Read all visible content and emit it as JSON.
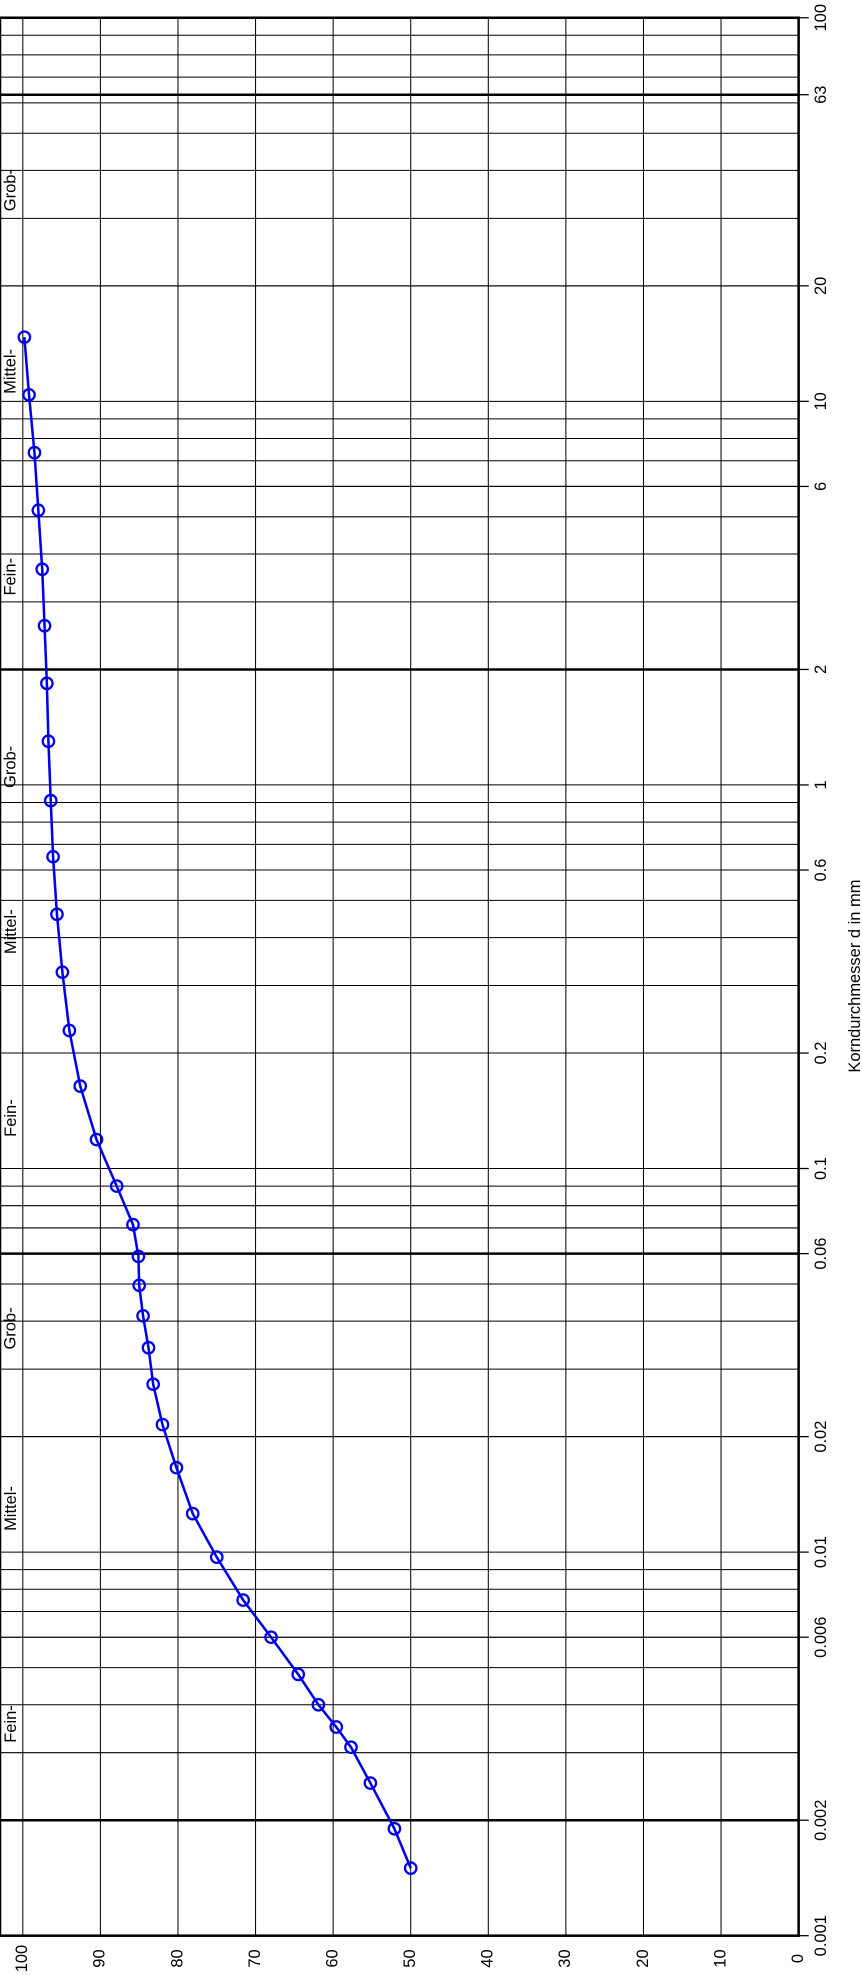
{
  "chart_data": {
    "type": "line",
    "x_label": "Korndurchmesser d in mm",
    "x_log": true,
    "xlim": [
      0.001,
      100
    ],
    "xticks": [
      0.001,
      0.002,
      0.006,
      0.01,
      0.02,
      0.06,
      0.1,
      0.2,
      0.6,
      1,
      2,
      6,
      10,
      20,
      63,
      100
    ],
    "ylim": [
      0,
      100
    ],
    "yticks": [
      0,
      10,
      20,
      30,
      40,
      50,
      60,
      70,
      80,
      90,
      100
    ],
    "grid": true,
    "annotations": [
      "Fein-",
      "Mittel-",
      "Grob-",
      "Fein-",
      "Mittel-",
      "Grob-",
      "Fein-",
      "Mittel-",
      "Grob-"
    ],
    "x": [
      0.0015,
      0.0019,
      0.0025,
      0.0031,
      0.0035,
      0.004,
      0.0048,
      0.006,
      0.0075,
      0.0097,
      0.0126,
      0.0166,
      0.0215,
      0.0274,
      0.0341,
      0.0413,
      0.0496,
      0.059,
      0.0714,
      0.09,
      0.119,
      0.164,
      0.229,
      0.325,
      0.46,
      0.65,
      0.91,
      1.3,
      1.84,
      2.6,
      3.65,
      5.2,
      7.35,
      10.4,
      14.7
    ],
    "series": [
      {
        "color": "#0000ee",
        "values": [
          50.0,
          52.1,
          55.2,
          57.7,
          59.6,
          61.9,
          64.5,
          68.0,
          71.6,
          75.0,
          78.1,
          80.2,
          82.0,
          83.2,
          83.8,
          84.5,
          85.0,
          85.1,
          85.8,
          87.9,
          90.5,
          92.6,
          94.0,
          94.9,
          95.6,
          96.1,
          96.4,
          96.7,
          96.9,
          97.2,
          97.5,
          98.0,
          98.5,
          99.2,
          99.8
        ]
      }
    ]
  }
}
